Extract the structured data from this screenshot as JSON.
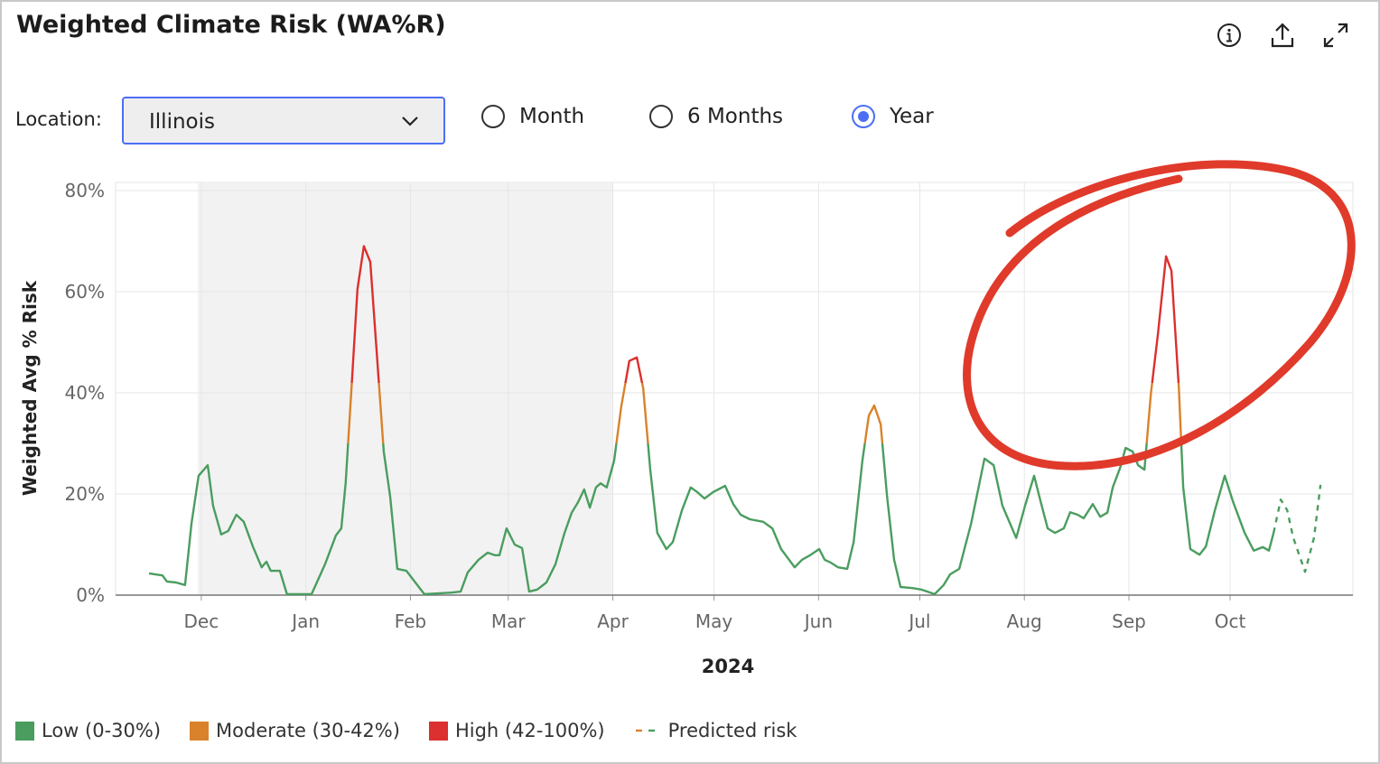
{
  "header": {
    "title": "Weighted Climate Risk (WA%R)"
  },
  "controls": {
    "location_label": "Location:",
    "location": "Illinois",
    "ranges": [
      "Month",
      "6 Months",
      "Year"
    ],
    "selected": 2
  },
  "chart_data": {
    "type": "line",
    "y_label": "Weighted Avg % Risk",
    "x_label": "2024",
    "xlim": [
      -25.4,
      341.4
    ],
    "xticks": [
      {
        "value": 0,
        "label": "Dec"
      },
      {
        "value": 31,
        "label": "Jan"
      },
      {
        "value": 62,
        "label": "Feb"
      },
      {
        "value": 91,
        "label": "Mar"
      },
      {
        "value": 122,
        "label": "Apr"
      },
      {
        "value": 152,
        "label": "May"
      },
      {
        "value": 183,
        "label": "Jun"
      },
      {
        "value": 213,
        "label": "Jul"
      },
      {
        "value": 244,
        "label": "Aug"
      },
      {
        "value": 275,
        "label": "Sep"
      },
      {
        "value": 305,
        "label": "Oct"
      }
    ],
    "ylim": [
      0,
      80
    ],
    "yticks": [
      {
        "value": 0,
        "label": "0%"
      },
      {
        "value": 20,
        "label": "20%"
      },
      {
        "value": 40,
        "label": "40%"
      },
      {
        "value": 60,
        "label": "60%"
      },
      {
        "value": 80,
        "label": "80%"
      }
    ],
    "grid": true,
    "shaded_range": [
      -1,
      122
    ],
    "bands": [
      {
        "name": "Low (0-30%)",
        "color": "#4a9d5f",
        "range": [
          0,
          30
        ]
      },
      {
        "name": "Moderate (30-42%)",
        "color": "#d9822b",
        "range": [
          30,
          42
        ]
      },
      {
        "name": "High (42-100%)",
        "color": "#dc2f2f",
        "range": [
          42,
          100
        ]
      }
    ],
    "series": [
      {
        "x": [
          -15.5,
          -11.5,
          -10.2,
          -7.5,
          -4.8,
          -2.9,
          -0.8,
          1.9,
          3.5,
          5.9,
          8.0,
          10.4,
          12.6,
          15.3,
          17.9,
          19.3,
          20.6,
          23.3,
          25.4,
          32.7,
          36.7,
          39.9,
          41.5,
          42.8,
          44.7,
          46.3,
          48.2,
          50.1,
          52.2,
          54.1,
          56.0,
          58.1,
          60.8,
          66.1,
          74.2,
          76.9,
          79.0,
          82.2,
          84.9,
          87.0,
          88.4,
          90.5,
          92.9,
          95.1,
          97.2,
          99.6,
          102.3,
          105.0,
          107.7,
          109.8,
          111.7,
          113.5,
          115.2,
          117.0,
          118.4,
          120.2,
          122.4,
          124.5,
          126.9,
          129.1,
          131.0,
          133.1,
          135.2,
          137.9,
          139.8,
          142.5,
          145.1,
          147.0,
          149.2,
          151.8,
          155.3,
          157.7,
          159.9,
          162.6,
          166.6,
          169.3,
          171.9,
          175.9,
          178.1,
          180.5,
          183.2,
          184.8,
          186.7,
          188.8,
          191.5,
          193.4,
          196.0,
          197.9,
          199.5,
          201.4,
          203.3,
          205.4,
          207.3,
          210.8,
          213.4,
          217.4,
          220.1,
          222.0,
          224.7,
          228.2,
          232.2,
          234.9,
          237.5,
          241.6,
          244.2,
          246.9,
          248.8,
          250.9,
          253.1,
          255.7,
          257.6,
          259.8,
          261.6,
          264.3,
          266.5,
          268.6,
          270.2,
          272.4,
          274.0,
          276.1,
          277.7,
          279.6,
          281.5,
          283.6,
          286.0,
          287.6,
          289.8,
          291.1,
          293.2,
          295.9,
          297.8,
          300.5,
          303.4,
          305.8,
          309.3,
          312.0,
          314.7,
          316.5,
          317.9
        ],
        "values": [
          4.3,
          3.9,
          2.7,
          2.5,
          2.0,
          14.1,
          23.6,
          25.7,
          17.7,
          12.0,
          12.7,
          15.9,
          14.5,
          9.6,
          5.5,
          6.6,
          4.8,
          4.8,
          0.2,
          0.2,
          6.1,
          11.8,
          13.2,
          22.1,
          42.7,
          60.5,
          69,
          65.9,
          46.3,
          28.4,
          19.5,
          5.2,
          4.8,
          0.2,
          0.5,
          0.7,
          4.5,
          7.0,
          8.4,
          7.9,
          7.9,
          13.2,
          10.0,
          9.3,
          0.7,
          1.1,
          2.5,
          6.1,
          12.3,
          16.3,
          18.4,
          20.9,
          17.3,
          21.3,
          22.1,
          21.3,
          26.6,
          37.3,
          46.3,
          47,
          40.9,
          24.8,
          12.3,
          9.1,
          10.5,
          16.8,
          21.3,
          20.4,
          19.1,
          20.4,
          21.6,
          18.0,
          15.9,
          15.0,
          14.5,
          13.2,
          9.1,
          5.5,
          7.0,
          7.9,
          9.1,
          7.0,
          6.4,
          5.5,
          5.2,
          10.5,
          26.6,
          35.5,
          37.5,
          33.8,
          19.5,
          7.0,
          1.6,
          1.4,
          1.1,
          0.2,
          2.0,
          4.1,
          5.2,
          14.1,
          27.0,
          25.7,
          17.7,
          11.3,
          17.7,
          23.6,
          18.6,
          13.2,
          12.3,
          13.2,
          16.4,
          15.9,
          15.2,
          18.0,
          15.5,
          16.3,
          21.3,
          25.2,
          29.1,
          28.4,
          25.7,
          24.8,
          39.8,
          51.6,
          67,
          64.1,
          40.9,
          21.3,
          9.1,
          8.0,
          9.6,
          16.8,
          23.6,
          18.6,
          12.3,
          8.8,
          9.5,
          8.8,
          12.3
        ]
      },
      {
        "name": "Predicted risk",
        "dashed": true,
        "x": [
          317.9,
          320.0,
          321.9,
          323.7,
          327.2,
          329.9,
          331.8
        ],
        "values": [
          12.3,
          18.9,
          16.8,
          11.4,
          4.6,
          11.4,
          21.8
        ]
      }
    ]
  }
}
